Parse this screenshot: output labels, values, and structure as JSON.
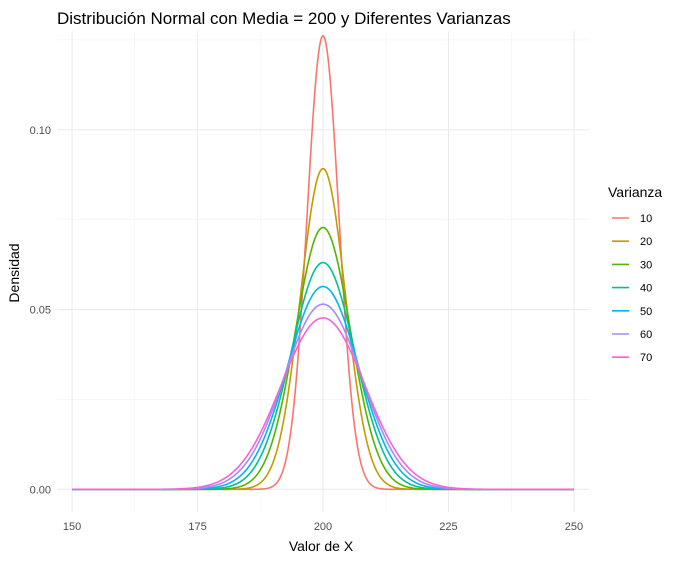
{
  "chart_data": {
    "type": "line",
    "title": "Distribución Normal con Media = 200 y Diferentes Varianzas",
    "xlabel": "Valor de X",
    "ylabel": "Densidad",
    "xlim": [
      147,
      253
    ],
    "ylim": [
      -0.0063,
      0.1275
    ],
    "x_ticks": [
      150,
      175,
      200,
      225,
      250
    ],
    "x_tick_labels": [
      "150",
      "175",
      "200",
      "225",
      "250"
    ],
    "y_ticks": [
      0.0,
      0.05,
      0.1
    ],
    "y_tick_labels": [
      "0.00",
      "0.05",
      "0.10"
    ],
    "grid": true,
    "legend": {
      "title": "Varianza",
      "position": "right"
    },
    "mean": 200,
    "x_range": [
      150,
      250
    ],
    "series": [
      {
        "name": "10",
        "variance": 10,
        "color": "#F8766D"
      },
      {
        "name": "20",
        "variance": 20,
        "color": "#C49A00"
      },
      {
        "name": "30",
        "variance": 30,
        "color": "#53B400"
      },
      {
        "name": "40",
        "variance": 40,
        "color": "#00C094"
      },
      {
        "name": "50",
        "variance": 50,
        "color": "#00B6EB"
      },
      {
        "name": "60",
        "variance": 60,
        "color": "#A58AFF"
      },
      {
        "name": "70",
        "variance": 70,
        "color": "#FB61D7"
      }
    ]
  }
}
